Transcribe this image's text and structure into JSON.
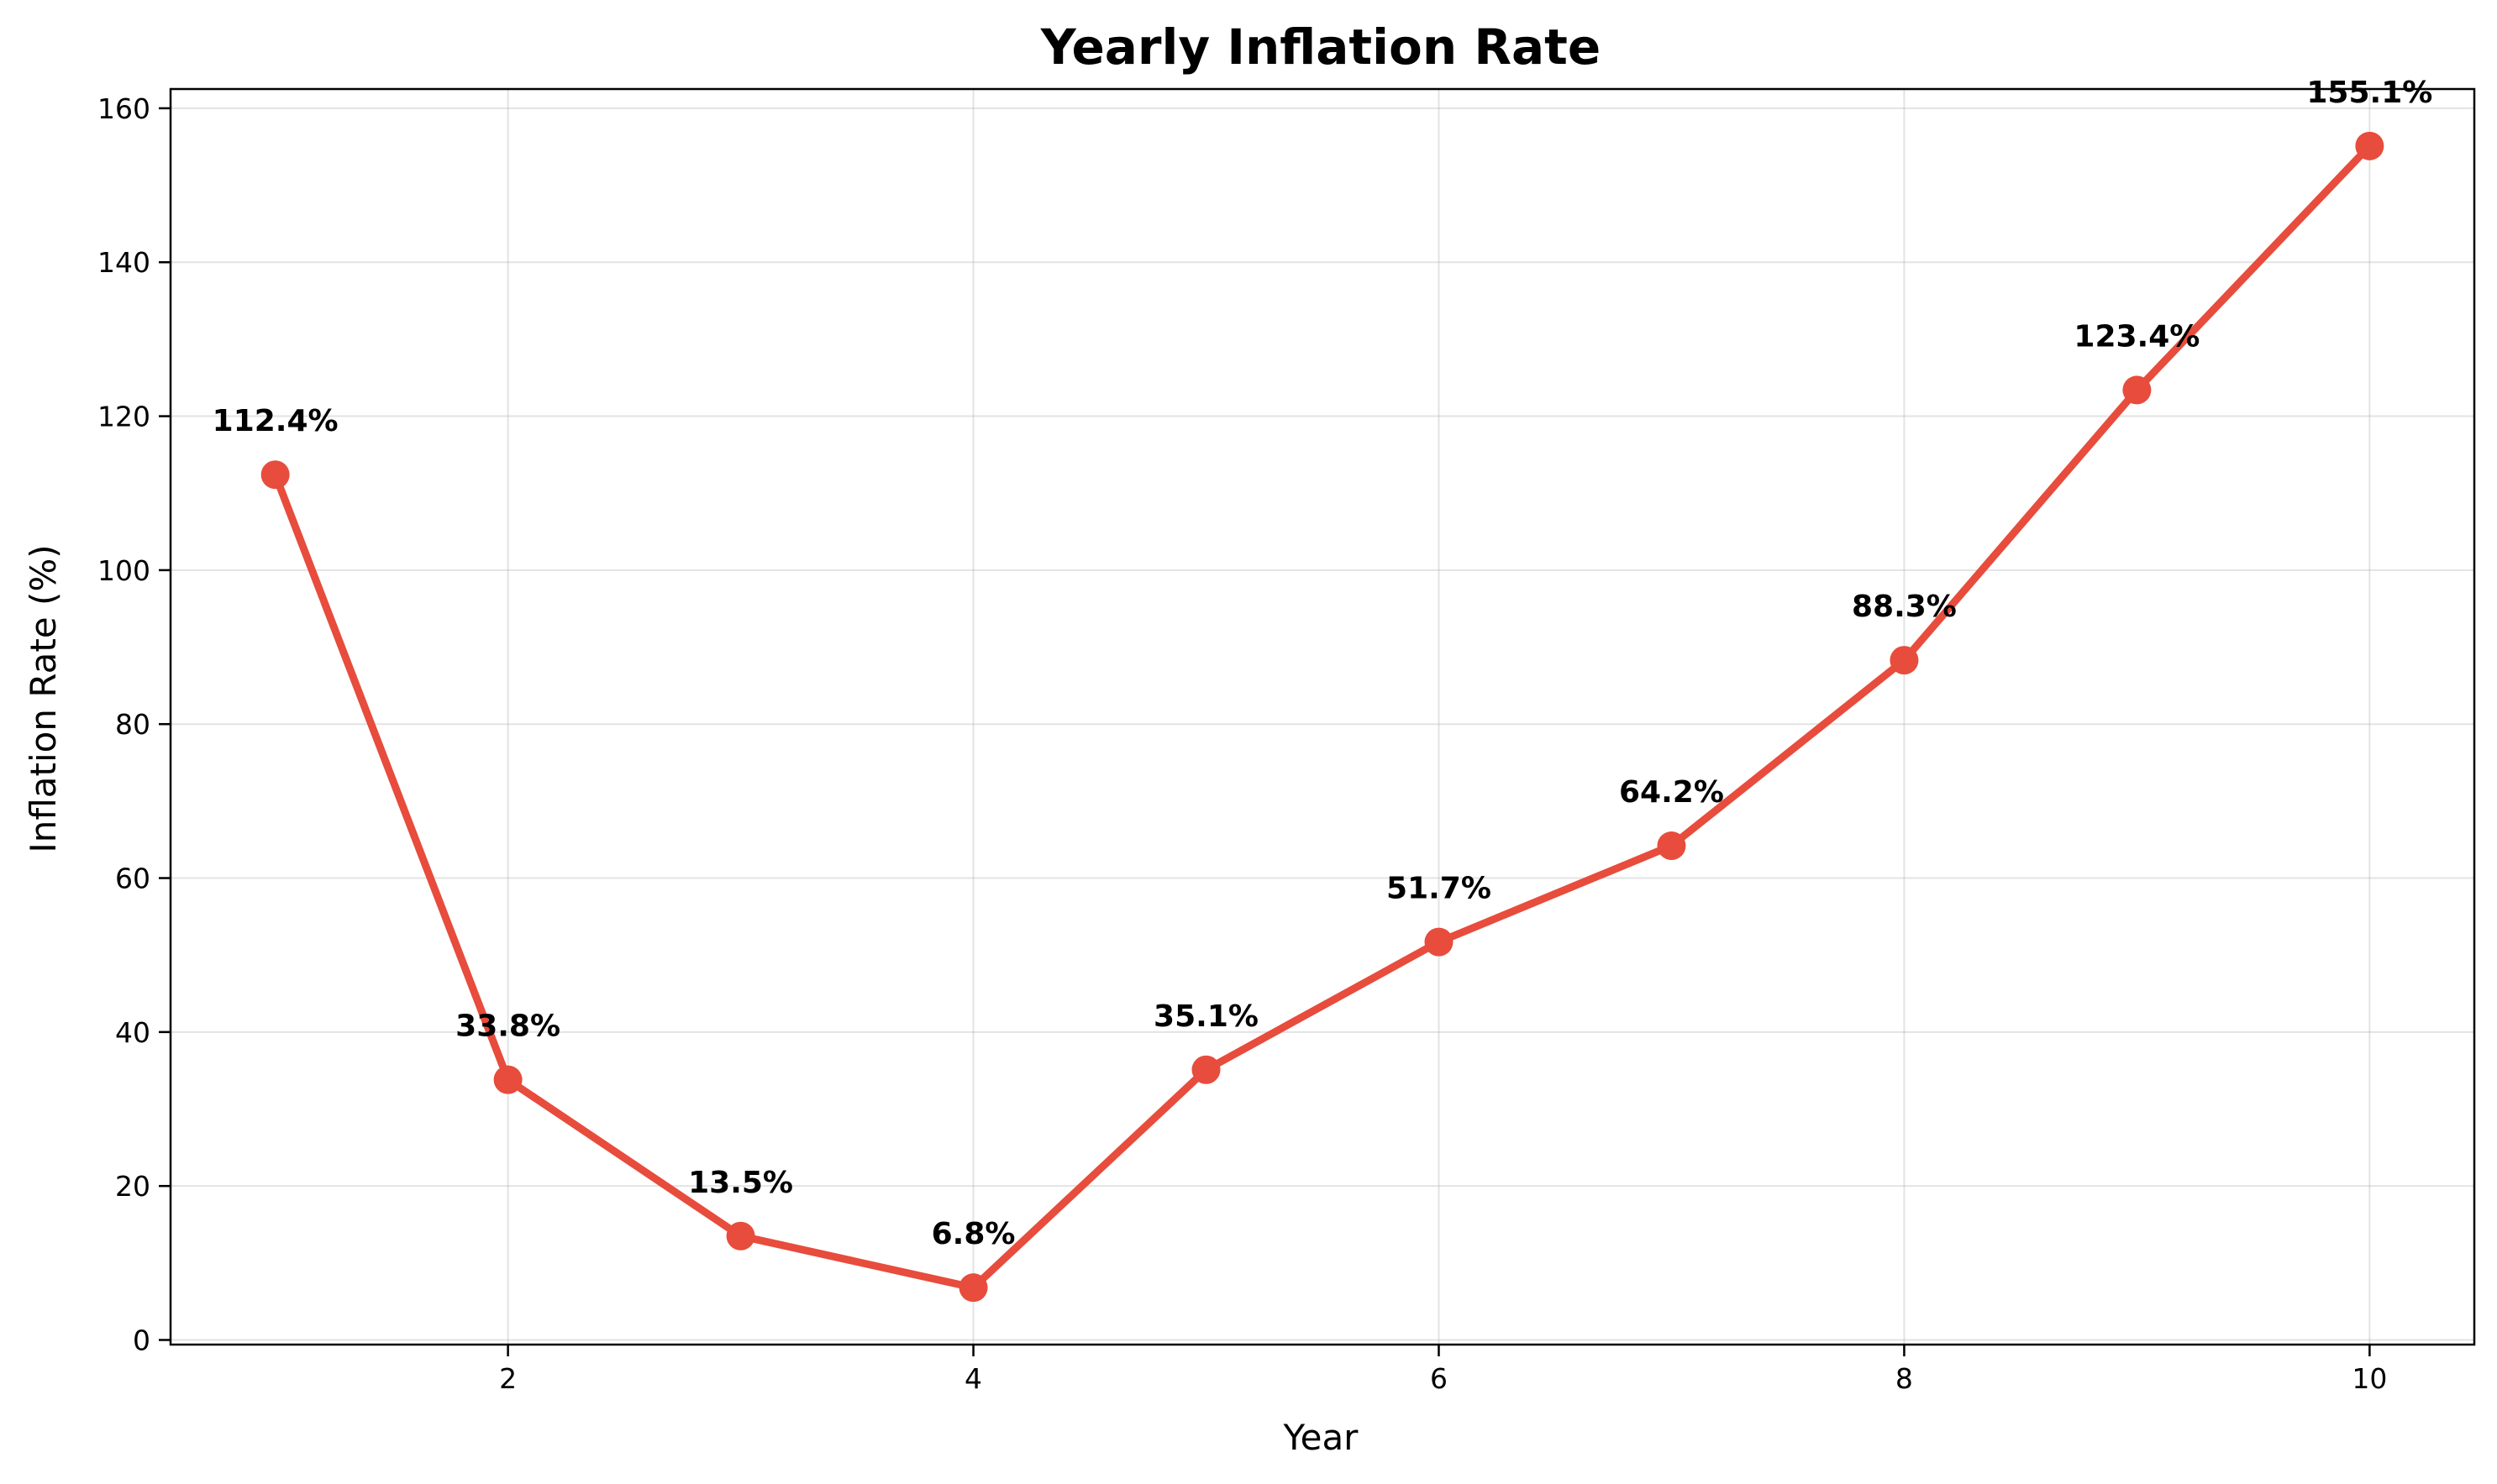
{
  "chart_data": {
    "type": "line",
    "title": "Yearly Inflation Rate",
    "xlabel": "Year",
    "ylabel": "Inflation Rate (%)",
    "x": [
      1,
      2,
      3,
      4,
      5,
      6,
      7,
      8,
      9,
      10
    ],
    "series": [
      {
        "values": [
          112.4,
          33.8,
          13.5,
          6.8,
          35.1,
          51.7,
          64.2,
          88.3,
          123.4,
          155.1
        ],
        "labels": [
          "112.4%",
          "33.8%",
          "13.5%",
          "6.8%",
          "35.1%",
          "51.7%",
          "64.2%",
          "88.3%",
          "123.4%",
          "155.1%"
        ],
        "color": "#e74c3c"
      }
    ],
    "xlim": [
      0.55,
      10.45
    ],
    "ylim": [
      -0.6,
      162.5
    ],
    "xticks": [
      2,
      4,
      6,
      8,
      10
    ],
    "yticks": [
      0,
      20,
      40,
      60,
      80,
      100,
      120,
      140,
      160
    ],
    "grid": true
  }
}
